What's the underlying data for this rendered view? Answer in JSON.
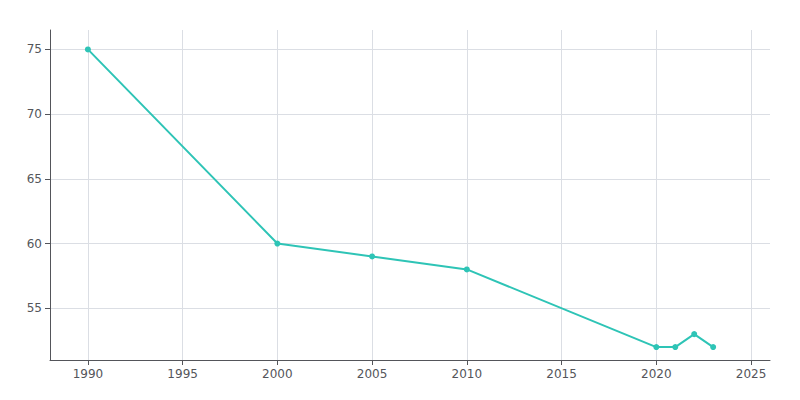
{
  "chart_data": {
    "type": "line",
    "x": [
      1990,
      2000,
      2005,
      2010,
      2020,
      2021,
      2022,
      2023
    ],
    "values": [
      75,
      60,
      59,
      58,
      52,
      52,
      53,
      52
    ],
    "color": "#2ec4b6",
    "marker": "circle",
    "xlim": [
      1988,
      2026
    ],
    "ylim": [
      51,
      76.5
    ],
    "xticks": [
      1990,
      1995,
      2000,
      2005,
      2010,
      2015,
      2020,
      2025
    ],
    "yticks": [
      55,
      60,
      65,
      70,
      75
    ],
    "grid": true
  }
}
